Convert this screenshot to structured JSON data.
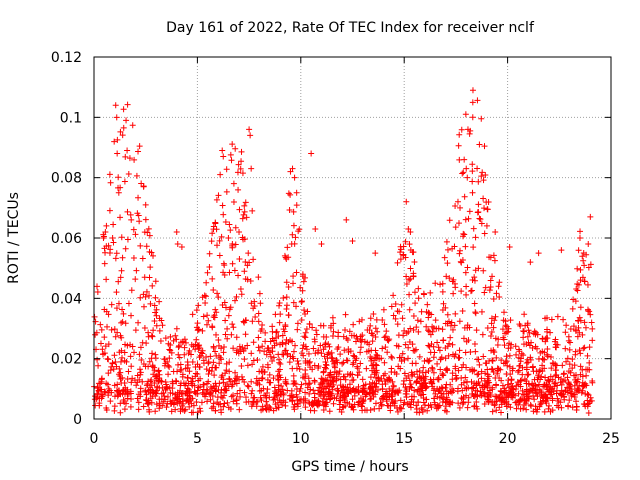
{
  "chart_data": {
    "type": "scatter",
    "title": "Day 161 of 2022, Rate Of TEC Index for receiver nclf",
    "xlabel": "GPS time / hours",
    "ylabel": "ROTI / TECUs",
    "xlim": [
      0,
      25
    ],
    "ylim": [
      0,
      0.12
    ],
    "x_ticks": [
      "0",
      "5",
      "10",
      "15",
      "20",
      "25"
    ],
    "y_ticks": [
      "0",
      "0.02",
      "0.04",
      "0.06",
      "0.08",
      "0.1",
      "0.12"
    ],
    "grid": true,
    "marker": "plus",
    "colors": {
      "series": "#ff0000",
      "grid": "#a0a0a0",
      "axis": "#000000"
    },
    "series": [
      {
        "name": "ROTI",
        "note": "dense cloud of points (approx. every 30 s); representative sample of visible outliers/peaks",
        "x": [
          1.05,
          1.1,
          1.12,
          1.55,
          1.6,
          1.2,
          2.4,
          2.5,
          0.55,
          0.6,
          0.9,
          1.8,
          4.0,
          4.05,
          4.25,
          6.1,
          6.2,
          6.25,
          6.5,
          7.5,
          7.55,
          7.6,
          7.65,
          9.5,
          9.6,
          9.7,
          9.8,
          10.5,
          10.7,
          11.0,
          12.2,
          12.5,
          13.6,
          15.1,
          15.2,
          15.3,
          16.5,
          17.6,
          17.7,
          17.9,
          18.0,
          18.05,
          19.0,
          19.4,
          20.1,
          21.1,
          21.5,
          22.6,
          23.5,
          23.9,
          24.0
        ],
        "y": [
          0.104,
          0.1,
          0.088,
          0.099,
          0.089,
          0.075,
          0.077,
          0.071,
          0.062,
          0.064,
          0.06,
          0.066,
          0.062,
          0.058,
          0.057,
          0.081,
          0.089,
          0.087,
          0.06,
          0.096,
          0.094,
          0.083,
          0.069,
          0.082,
          0.083,
          0.08,
          0.075,
          0.088,
          0.063,
          0.058,
          0.066,
          0.059,
          0.055,
          0.072,
          0.063,
          0.062,
          0.045,
          0.072,
          0.07,
          0.086,
          0.083,
          0.08,
          0.064,
          0.062,
          0.057,
          0.052,
          0.055,
          0.056,
          0.06,
          0.058,
          0.067
        ]
      }
    ]
  }
}
